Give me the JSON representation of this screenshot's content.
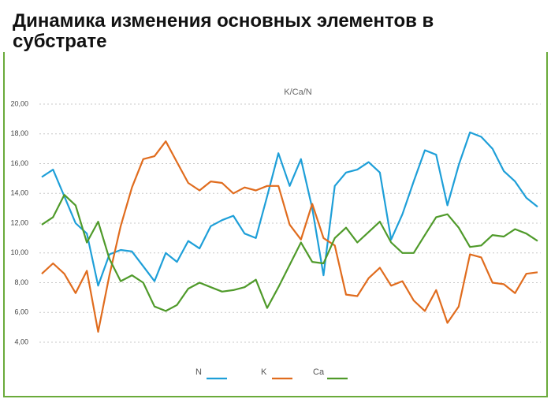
{
  "chart_data": {
    "type": "line",
    "title": "Динамика изменения основных элементов в субстрате",
    "subtitle": "K/Ca/N",
    "categories": [
      null,
      null,
      null,
      null,
      null,
      null,
      null,
      null,
      null,
      null,
      null,
      null,
      null,
      null,
      null,
      null,
      null,
      null,
      null,
      null,
      null,
      null,
      null,
      null,
      null,
      null,
      null,
      null,
      null,
      null,
      null,
      null,
      null,
      null,
      null,
      null,
      null,
      null,
      null,
      null,
      null,
      null,
      null,
      null,
      null
    ],
    "series": [
      {
        "name": "N",
        "color": "#1e9fd8",
        "values": [
          15.1,
          15.6,
          13.8,
          12.0,
          11.3,
          7.8,
          9.9,
          10.2,
          10.1,
          9.1,
          8.1,
          10.0,
          9.4,
          10.8,
          10.3,
          11.8,
          12.2,
          12.5,
          11.3,
          11.0,
          13.8,
          16.7,
          14.5,
          16.3,
          13.0,
          8.5,
          14.5,
          15.4,
          15.6,
          16.1,
          15.4,
          10.9,
          12.6,
          14.8,
          16.9,
          16.6,
          13.2,
          15.9,
          18.1,
          17.8,
          17.0,
          15.5,
          14.8,
          13.7,
          13.1
        ]
      },
      {
        "name": "K",
        "color": "#e06c1e",
        "values": [
          8.6,
          9.3,
          8.6,
          7.3,
          8.8,
          4.7,
          8.5,
          11.8,
          14.4,
          16.3,
          16.5,
          17.5,
          16.1,
          14.7,
          14.2,
          14.8,
          14.7,
          14.0,
          14.4,
          14.2,
          14.5,
          14.5,
          11.9,
          10.9,
          13.3,
          11.0,
          10.5,
          7.2,
          7.1,
          8.3,
          9.0,
          7.8,
          8.1,
          6.8,
          6.1,
          7.5,
          5.3,
          6.4,
          9.9,
          9.7,
          8.0,
          7.9,
          7.3,
          8.6,
          8.7
        ]
      },
      {
        "name": "Ca",
        "color": "#4f9a2a",
        "values": [
          11.9,
          12.4,
          13.9,
          13.2,
          10.7,
          12.1,
          9.6,
          8.1,
          8.5,
          8.0,
          6.4,
          6.1,
          6.5,
          7.6,
          8.0,
          7.7,
          7.4,
          7.5,
          7.7,
          8.2,
          6.3,
          7.7,
          9.2,
          10.7,
          9.4,
          9.3,
          11.0,
          11.7,
          10.7,
          11.4,
          12.1,
          10.7,
          10.0,
          10.0,
          11.2,
          12.4,
          12.6,
          11.7,
          10.4,
          10.5,
          11.2,
          11.1,
          11.6,
          11.3,
          10.8
        ]
      }
    ],
    "ylim": [
      4,
      20
    ],
    "yticks": [
      {
        "value": 4,
        "label": "4,00"
      },
      {
        "value": 6,
        "label": "6,00"
      },
      {
        "value": 8,
        "label": "8,00"
      },
      {
        "value": 10,
        "label": "10,00"
      },
      {
        "value": 12,
        "label": "12,00"
      },
      {
        "value": 14,
        "label": "14,00"
      },
      {
        "value": 16,
        "label": "16,00"
      },
      {
        "value": 18,
        "label": "18,00"
      },
      {
        "value": 20,
        "label": "20,00"
      }
    ],
    "grid": true,
    "legend": "bottom"
  }
}
